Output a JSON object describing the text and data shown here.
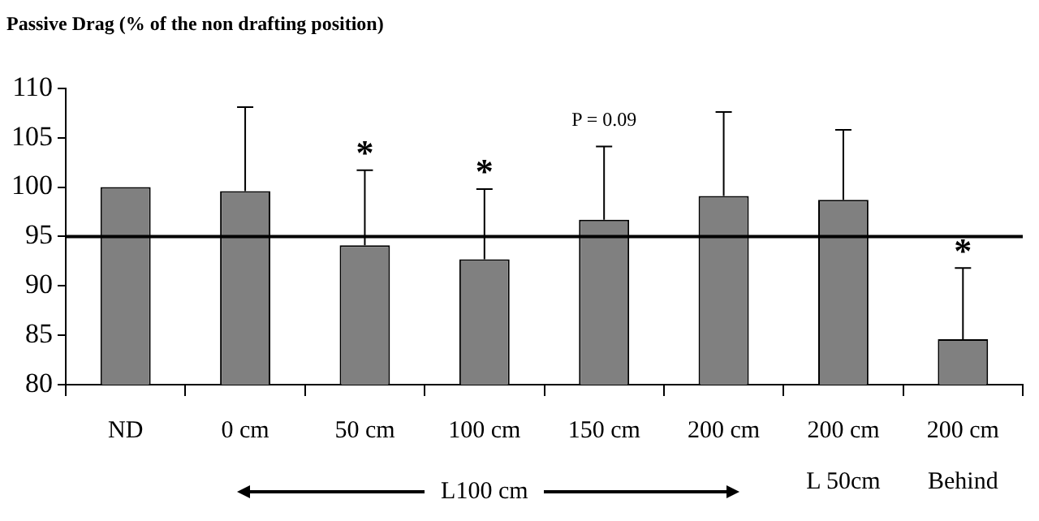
{
  "chart_data": {
    "type": "bar",
    "title": "Passive Drag (% of the non drafting position)",
    "categories": [
      "ND",
      "0 cm",
      "50 cm",
      "100 cm",
      "150 cm",
      "200 cm",
      "200 cm\nL 50cm",
      "200 cm\nBehind"
    ],
    "values": [
      100,
      99.6,
      94.1,
      92.7,
      96.7,
      99.1,
      98.7,
      84.6
    ],
    "errors": [
      null,
      [
        99.6,
        108.1
      ],
      [
        94.1,
        101.7
      ],
      [
        92.7,
        99.8
      ],
      [
        96.7,
        104.1
      ],
      [
        99.1,
        107.6
      ],
      [
        98.7,
        105.8
      ],
      [
        84.6,
        91.8
      ]
    ],
    "color": "#808080",
    "ylim": [
      80,
      110
    ],
    "yticks": [
      80,
      85,
      90,
      95,
      100,
      105,
      110
    ],
    "ref_lines": [
      {
        "axis": "y",
        "value": 95,
        "color": "#000000"
      }
    ],
    "annotations": [
      "*",
      "*",
      "P = 0.09",
      "*",
      "L100 cm"
    ],
    "grid": false,
    "legend": false
  }
}
